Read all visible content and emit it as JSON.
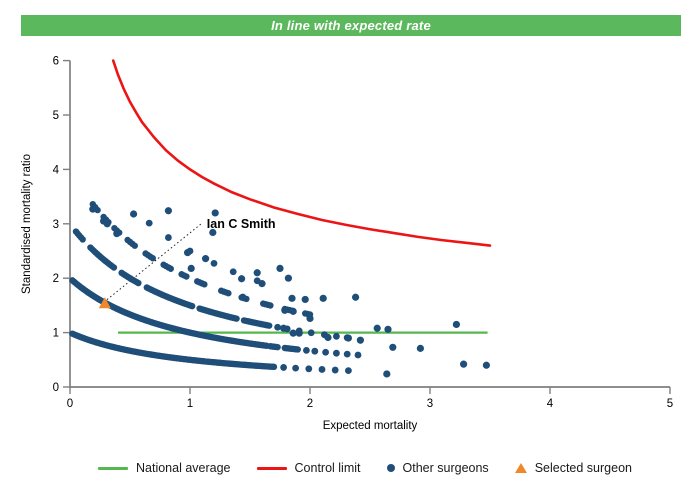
{
  "header": {
    "title": "In line with expected rate"
  },
  "colors": {
    "banner_green": "#5cb85c",
    "national_average_green": "#56b74f",
    "control_limit_red": "#ec1515",
    "surgeon_blue": "#1f4e79",
    "selected_orange": "#ef8829",
    "axis_gray": "#7f7f7f",
    "text_black": "#000000"
  },
  "chart_data": {
    "type": "scatter",
    "title": "",
    "xlabel": "Expected mortality",
    "ylabel": "Standardised mortality ratio",
    "xlim": [
      0,
      5
    ],
    "ylim": [
      0,
      6
    ],
    "x_ticks": [
      0,
      1,
      2,
      3,
      4,
      5
    ],
    "y_ticks": [
      0,
      1,
      2,
      3,
      4,
      5,
      6
    ],
    "grid": false,
    "legend_position": "bottom",
    "national_average": {
      "y": 1.0,
      "x_start": 0.4,
      "x_end": 3.48
    },
    "control_limit": {
      "points": [
        [
          0.36,
          6.0
        ],
        [
          0.4,
          5.74
        ],
        [
          0.45,
          5.47
        ],
        [
          0.5,
          5.24
        ],
        [
          0.55,
          5.05
        ],
        [
          0.6,
          4.87
        ],
        [
          0.7,
          4.59
        ],
        [
          0.8,
          4.35
        ],
        [
          0.9,
          4.16
        ],
        [
          1.0,
          4.0
        ],
        [
          1.1,
          3.86
        ],
        [
          1.2,
          3.74
        ],
        [
          1.35,
          3.58
        ],
        [
          1.5,
          3.45
        ],
        [
          1.7,
          3.3
        ],
        [
          1.9,
          3.18
        ],
        [
          2.1,
          3.07
        ],
        [
          2.3,
          2.98
        ],
        [
          2.5,
          2.9
        ],
        [
          2.7,
          2.83
        ],
        [
          2.9,
          2.76
        ],
        [
          3.1,
          2.7
        ],
        [
          3.3,
          2.65
        ],
        [
          3.5,
          2.6
        ]
      ]
    },
    "surgeon_bands_note": "surgeons with n observed deaths lie on smr = n/(1+expected)",
    "surgeon_bands": [
      {
        "deaths": 1,
        "step": 0.012,
        "dense_segments": [
          [
            0.02,
            1.7
          ]
        ],
        "dot_xs": [
          1.78,
          1.88,
          1.99,
          2.1,
          2.21,
          2.32
        ]
      },
      {
        "deaths": 2,
        "step": 0.012,
        "dense_segments": [
          [
            0.02,
            1.64
          ],
          [
            1.67,
            1.74
          ],
          [
            1.79,
            1.9
          ]
        ],
        "dot_xs": [
          1.97,
          2.04,
          2.13,
          2.22,
          2.31,
          2.4
        ]
      },
      {
        "deaths": 3,
        "step": 0.014,
        "dense_segments": [
          [
            0.05,
            0.11
          ],
          [
            0.17,
            0.37
          ],
          [
            0.43,
            0.58
          ],
          [
            0.64,
            1.03
          ],
          [
            1.08,
            1.39
          ],
          [
            1.45,
            1.66
          ]
        ],
        "dot_xs": [
          1.73,
          1.81,
          1.91,
          2.01,
          2.12,
          2.22,
          2.31
        ]
      },
      {
        "deaths": 4,
        "step": 0.02,
        "dense_segments": [
          [
            0.19,
            0.24
          ],
          [
            0.28,
            0.32
          ],
          [
            0.37,
            0.41
          ],
          [
            0.48,
            0.54
          ],
          [
            0.63,
            0.69
          ],
          [
            0.78,
            0.85
          ],
          [
            0.93,
            0.98
          ],
          [
            1.06,
            1.13
          ],
          [
            1.26,
            1.32
          ],
          [
            1.43,
            1.48
          ],
          [
            1.61,
            1.67
          ],
          [
            1.79,
            1.85
          ],
          [
            1.96,
            2.01
          ]
        ],
        "dot_xs": []
      },
      {
        "deaths": 5,
        "step": 0.02,
        "dense_segments": [],
        "dot_xs": [
          0.66,
          0.82,
          1.0,
          1.2,
          1.36,
          1.56
        ]
      }
    ],
    "other_surgeons_points": [
      [
        0.19,
        3.27
      ],
      [
        0.28,
        3.05
      ],
      [
        0.31,
        3.0
      ],
      [
        0.39,
        2.82
      ],
      [
        0.53,
        3.18
      ],
      [
        0.82,
        3.24
      ],
      [
        1.21,
        3.2
      ],
      [
        1.19,
        2.84
      ],
      [
        0.98,
        2.47
      ],
      [
        1.01,
        2.18
      ],
      [
        1.13,
        2.36
      ],
      [
        1.43,
        1.99
      ],
      [
        1.44,
        1.65
      ],
      [
        1.56,
        2.1
      ],
      [
        1.6,
        1.9
      ],
      [
        1.75,
        2.18
      ],
      [
        1.82,
        2.0
      ],
      [
        1.85,
        1.63
      ],
      [
        1.96,
        1.61
      ],
      [
        2.11,
        1.63
      ],
      [
        2.38,
        1.65
      ],
      [
        1.79,
        1.41
      ],
      [
        1.86,
        1.39
      ],
      [
        2.0,
        1.26
      ],
      [
        1.78,
        1.08
      ],
      [
        1.86,
        0.99
      ],
      [
        1.91,
        0.99
      ],
      [
        2.15,
        0.91
      ],
      [
        2.32,
        0.9
      ],
      [
        2.42,
        0.86
      ],
      [
        2.56,
        1.08
      ],
      [
        2.65,
        1.06
      ],
      [
        2.69,
        0.73
      ],
      [
        2.92,
        0.71
      ],
      [
        3.22,
        1.15
      ],
      [
        2.64,
        0.24
      ],
      [
        3.28,
        0.42
      ],
      [
        3.47,
        0.4
      ]
    ],
    "selected_surgeon": {
      "label": "Ian C Smith",
      "x": 0.29,
      "smr": 1.53,
      "label_x": 1.14,
      "label_y": 2.92
    }
  },
  "legend": {
    "items": [
      {
        "label": "National average",
        "swatch": "line",
        "color": "#56b74f"
      },
      {
        "label": "Control limit",
        "swatch": "line",
        "color": "#ec1515"
      },
      {
        "label": "Other surgeons",
        "swatch": "dot",
        "color": "#1f4e79"
      },
      {
        "label": "Selected surgeon",
        "swatch": "triangle",
        "color": "#ef8829"
      }
    ]
  }
}
